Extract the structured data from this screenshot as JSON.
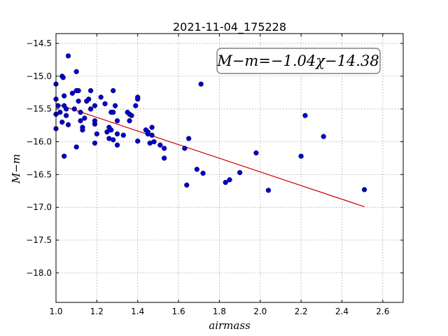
{
  "chart_data": {
    "type": "scatter",
    "title": "2021-11-04_175228",
    "xlabel": "airmass",
    "ylabel": "M−m",
    "xlim": [
      1.0,
      2.7
    ],
    "ylim": [
      -18.45,
      -14.35
    ],
    "x_ticks": [
      "1.0",
      "1.2",
      "1.4",
      "1.6",
      "1.8",
      "2.0",
      "2.2",
      "2.4",
      "2.6"
    ],
    "x_tick_values": [
      1.0,
      1.2,
      1.4,
      1.6,
      1.8,
      2.0,
      2.2,
      2.4,
      2.6
    ],
    "y_ticks": [
      "−14.5",
      "−15.0",
      "−15.5",
      "−16.0",
      "−16.5",
      "−17.0",
      "−17.5",
      "−18.0"
    ],
    "y_tick_values": [
      -14.5,
      -15.0,
      -15.5,
      -16.0,
      -16.5,
      -17.0,
      -17.5,
      -18.0
    ],
    "grid": true,
    "annotation": "M−m=−1.04χ−14.38",
    "fit": {
      "slope": -1.04,
      "intercept": -14.38,
      "x_range": [
        1.0,
        2.51
      ],
      "color": "#cc0000"
    },
    "point_color": "#0000cc",
    "points": [
      [
        1.0,
        -15.12
      ],
      [
        1.0,
        -15.35
      ],
      [
        1.0,
        -15.58
      ],
      [
        1.0,
        -15.8
      ],
      [
        1.01,
        -15.45
      ],
      [
        1.02,
        -15.55
      ],
      [
        1.03,
        -15.0
      ],
      [
        1.035,
        -15.02
      ],
      [
        1.04,
        -15.3
      ],
      [
        1.04,
        -15.45
      ],
      [
        1.05,
        -15.5
      ],
      [
        1.05,
        -15.6
      ],
      [
        1.03,
        -15.7
      ],
      [
        1.06,
        -15.74
      ],
      [
        1.04,
        -16.22
      ],
      [
        1.06,
        -14.69
      ],
      [
        1.08,
        -15.26
      ],
      [
        1.09,
        -15.5
      ],
      [
        1.1,
        -14.93
      ],
      [
        1.1,
        -15.22
      ],
      [
        1.11,
        -15.22
      ],
      [
        1.11,
        -15.38
      ],
      [
        1.12,
        -15.55
      ],
      [
        1.12,
        -15.68
      ],
      [
        1.13,
        -15.78
      ],
      [
        1.13,
        -15.82
      ],
      [
        1.14,
        -15.64
      ],
      [
        1.15,
        -15.38
      ],
      [
        1.16,
        -15.35
      ],
      [
        1.17,
        -15.22
      ],
      [
        1.17,
        -15.5
      ],
      [
        1.19,
        -15.45
      ],
      [
        1.19,
        -15.68
      ],
      [
        1.19,
        -15.73
      ],
      [
        1.2,
        -15.88
      ],
      [
        1.19,
        -16.02
      ],
      [
        1.1,
        -16.08
      ],
      [
        1.22,
        -15.32
      ],
      [
        1.24,
        -15.42
      ],
      [
        1.25,
        -15.85
      ],
      [
        1.26,
        -15.78
      ],
      [
        1.26,
        -15.95
      ],
      [
        1.27,
        -15.55
      ],
      [
        1.27,
        -15.82
      ],
      [
        1.28,
        -15.22
      ],
      [
        1.28,
        -15.55
      ],
      [
        1.28,
        -15.97
      ],
      [
        1.29,
        -15.45
      ],
      [
        1.3,
        -15.88
      ],
      [
        1.3,
        -16.05
      ],
      [
        1.3,
        -15.68
      ],
      [
        1.33,
        -15.9
      ],
      [
        1.35,
        -15.55
      ],
      [
        1.36,
        -15.68
      ],
      [
        1.36,
        -15.58
      ],
      [
        1.37,
        -15.6
      ],
      [
        1.39,
        -15.45
      ],
      [
        1.4,
        -15.35
      ],
      [
        1.4,
        -15.32
      ],
      [
        1.4,
        -15.99
      ],
      [
        1.44,
        -15.82
      ],
      [
        1.45,
        -15.85
      ],
      [
        1.45,
        -15.88
      ],
      [
        1.46,
        -16.02
      ],
      [
        1.47,
        -15.78
      ],
      [
        1.47,
        -15.9
      ],
      [
        1.48,
        -16.0
      ],
      [
        1.51,
        -16.05
      ],
      [
        1.53,
        -16.1
      ],
      [
        1.53,
        -16.25
      ],
      [
        1.63,
        -16.1
      ],
      [
        1.64,
        -16.66
      ],
      [
        1.65,
        -15.95
      ],
      [
        1.69,
        -16.42
      ],
      [
        1.71,
        -15.12
      ],
      [
        1.72,
        -16.48
      ],
      [
        1.83,
        -16.62
      ],
      [
        1.85,
        -16.58
      ],
      [
        1.9,
        -16.47
      ],
      [
        1.98,
        -16.17
      ],
      [
        2.04,
        -16.74
      ],
      [
        2.2,
        -16.22
      ],
      [
        2.22,
        -15.6
      ],
      [
        2.31,
        -15.92
      ],
      [
        2.51,
        -16.73
      ]
    ]
  }
}
